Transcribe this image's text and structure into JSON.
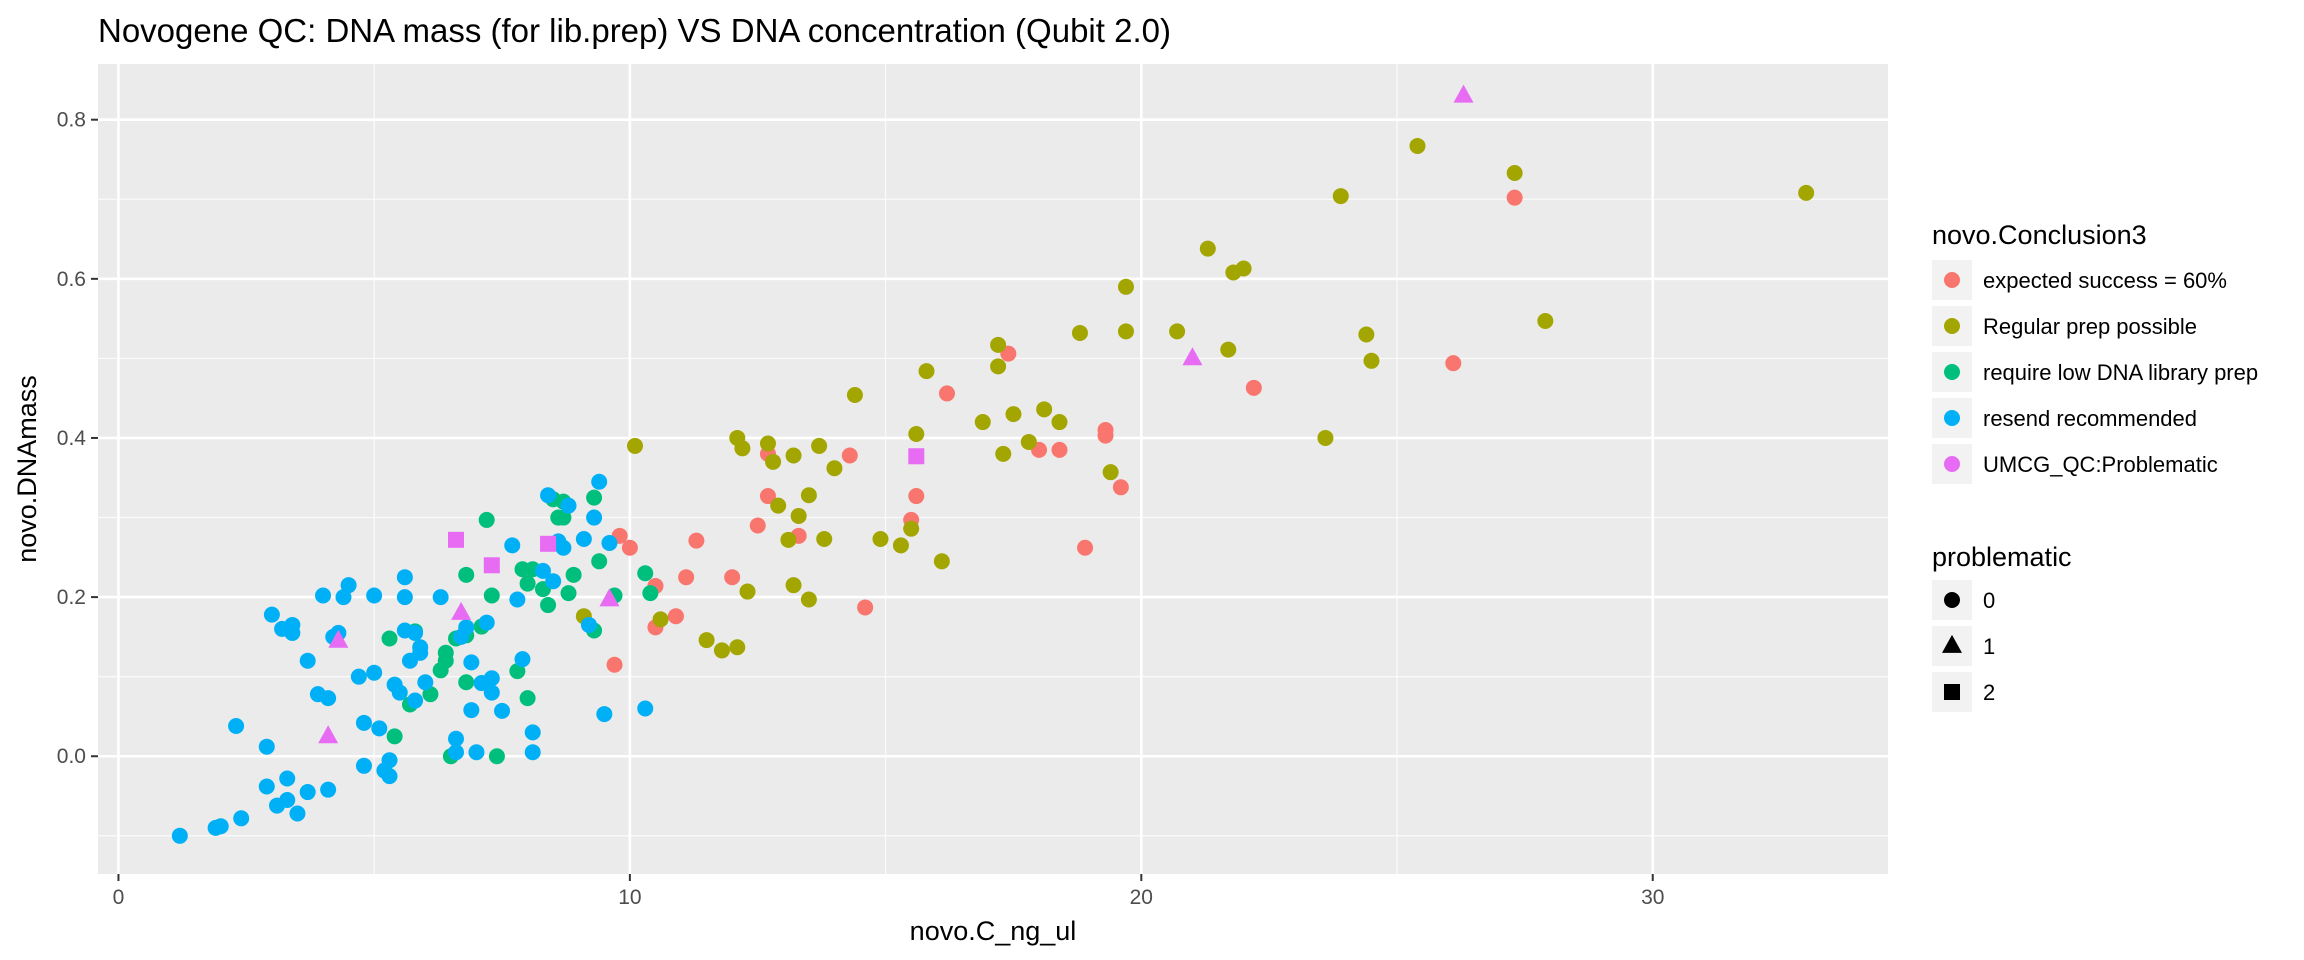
{
  "chart_data": {
    "type": "scatter",
    "title": "Novogene QC: DNA mass (for lib.prep) VS DNA concentration (Qubit 2.0)",
    "xlabel": "novo.C_ng_ul",
    "ylabel": "novo.DNAmass",
    "xlim": [
      -0.4,
      34.6
    ],
    "ylim": [
      -0.148,
      0.87
    ],
    "x_ticks": [
      0,
      10,
      20,
      30
    ],
    "y_ticks": [
      0.0,
      0.2,
      0.4,
      0.6,
      0.8
    ],
    "y_tick_labels": [
      "0.0",
      "0.2",
      "0.4",
      "0.6",
      "0.8"
    ],
    "grid": true,
    "legend_position": "right",
    "color_legend": {
      "title": "novo.Conclusion3",
      "entries": [
        {
          "label": "expected success = 60%",
          "color": "#F8766D"
        },
        {
          "label": "Regular prep possible",
          "color": "#A3A500"
        },
        {
          "label": "require low DNA library prep",
          "color": "#00BF7D"
        },
        {
          "label": "resend recommended",
          "color": "#00B0F6"
        },
        {
          "label": "UMCG_QC:Problematic",
          "color": "#E76BF3"
        }
      ]
    },
    "shape_legend": {
      "title": "problematic",
      "entries": [
        {
          "label": "0",
          "shape": "circle"
        },
        {
          "label": "1",
          "shape": "triangle"
        },
        {
          "label": "2",
          "shape": "square"
        }
      ]
    },
    "series": [
      {
        "name": "expected success = 60%",
        "color": "#F8766D",
        "shape": "circle",
        "points": [
          [
            9.8,
            0.277
          ],
          [
            10.0,
            0.262
          ],
          [
            10.5,
            0.214
          ],
          [
            10.5,
            0.162
          ],
          [
            10.9,
            0.176
          ],
          [
            11.1,
            0.225
          ],
          [
            11.3,
            0.271
          ],
          [
            12.0,
            0.225
          ],
          [
            12.5,
            0.29
          ],
          [
            12.7,
            0.327
          ],
          [
            12.7,
            0.38
          ],
          [
            13.3,
            0.277
          ],
          [
            14.3,
            0.378
          ],
          [
            14.6,
            0.187
          ],
          [
            15.5,
            0.297
          ],
          [
            15.6,
            0.327
          ],
          [
            16.2,
            0.456
          ],
          [
            17.4,
            0.506
          ],
          [
            18.0,
            0.385
          ],
          [
            18.4,
            0.385
          ],
          [
            18.9,
            0.262
          ],
          [
            19.3,
            0.41
          ],
          [
            19.3,
            0.403
          ],
          [
            19.6,
            0.338
          ],
          [
            22.2,
            0.463
          ],
          [
            26.1,
            0.494
          ],
          [
            27.3,
            0.702
          ],
          [
            9.7,
            0.115
          ]
        ]
      },
      {
        "name": "Regular prep possible",
        "color": "#A3A500",
        "shape": "circle",
        "points": [
          [
            9.1,
            0.176
          ],
          [
            10.1,
            0.39
          ],
          [
            10.6,
            0.172
          ],
          [
            11.5,
            0.146
          ],
          [
            11.8,
            0.133
          ],
          [
            12.1,
            0.137
          ],
          [
            12.1,
            0.4
          ],
          [
            12.2,
            0.387
          ],
          [
            12.3,
            0.207
          ],
          [
            12.7,
            0.393
          ],
          [
            12.8,
            0.37
          ],
          [
            12.9,
            0.315
          ],
          [
            13.1,
            0.272
          ],
          [
            13.2,
            0.378
          ],
          [
            13.2,
            0.215
          ],
          [
            13.3,
            0.302
          ],
          [
            13.5,
            0.328
          ],
          [
            13.5,
            0.197
          ],
          [
            13.7,
            0.39
          ],
          [
            13.8,
            0.273
          ],
          [
            14.0,
            0.362
          ],
          [
            14.4,
            0.454
          ],
          [
            14.9,
            0.273
          ],
          [
            15.3,
            0.265
          ],
          [
            15.5,
            0.286
          ],
          [
            15.6,
            0.405
          ],
          [
            15.8,
            0.484
          ],
          [
            16.1,
            0.245
          ],
          [
            16.9,
            0.42
          ],
          [
            17.2,
            0.49
          ],
          [
            17.2,
            0.517
          ],
          [
            17.3,
            0.38
          ],
          [
            17.5,
            0.43
          ],
          [
            17.8,
            0.395
          ],
          [
            18.1,
            0.436
          ],
          [
            18.4,
            0.42
          ],
          [
            18.8,
            0.532
          ],
          [
            19.4,
            0.357
          ],
          [
            19.7,
            0.534
          ],
          [
            19.7,
            0.59
          ],
          [
            20.7,
            0.534
          ],
          [
            21.3,
            0.638
          ],
          [
            21.7,
            0.511
          ],
          [
            21.8,
            0.608
          ],
          [
            22.0,
            0.613
          ],
          [
            23.6,
            0.4
          ],
          [
            23.9,
            0.704
          ],
          [
            24.4,
            0.53
          ],
          [
            24.5,
            0.497
          ],
          [
            25.4,
            0.767
          ],
          [
            27.3,
            0.733
          ],
          [
            27.9,
            0.547
          ],
          [
            33.0,
            0.708
          ]
        ]
      },
      {
        "name": "require low DNA library prep",
        "color": "#00BF7D",
        "shape": "circle",
        "points": [
          [
            5.3,
            0.148
          ],
          [
            5.4,
            0.025
          ],
          [
            5.7,
            0.065
          ],
          [
            5.8,
            0.157
          ],
          [
            6.3,
            0.108
          ],
          [
            6.4,
            0.13
          ],
          [
            6.4,
            0.12
          ],
          [
            6.6,
            0.148
          ],
          [
            6.8,
            0.152
          ],
          [
            6.8,
            0.093
          ],
          [
            6.8,
            0.228
          ],
          [
            7.1,
            0.163
          ],
          [
            7.2,
            0.297
          ],
          [
            7.3,
            0.202
          ],
          [
            7.4,
            0.0
          ],
          [
            7.8,
            0.107
          ],
          [
            7.9,
            0.235
          ],
          [
            8.0,
            0.217
          ],
          [
            8.0,
            0.073
          ],
          [
            8.1,
            0.235
          ],
          [
            8.3,
            0.21
          ],
          [
            8.4,
            0.19
          ],
          [
            8.5,
            0.323
          ],
          [
            8.6,
            0.3
          ],
          [
            8.7,
            0.32
          ],
          [
            8.7,
            0.3
          ],
          [
            8.8,
            0.205
          ],
          [
            8.9,
            0.228
          ],
          [
            9.3,
            0.158
          ],
          [
            9.3,
            0.325
          ],
          [
            9.4,
            0.245
          ],
          [
            9.7,
            0.202
          ],
          [
            10.3,
            0.23
          ],
          [
            10.4,
            0.205
          ],
          [
            6.1,
            0.078
          ],
          [
            6.5,
            0.0
          ]
        ]
      },
      {
        "name": "resend recommended",
        "color": "#00B0F6",
        "shape": "circle",
        "points": [
          [
            1.2,
            -0.1
          ],
          [
            1.9,
            -0.09
          ],
          [
            2.0,
            -0.088
          ],
          [
            2.3,
            0.038
          ],
          [
            2.4,
            -0.078
          ],
          [
            2.9,
            0.012
          ],
          [
            2.9,
            -0.038
          ],
          [
            3.0,
            0.178
          ],
          [
            3.1,
            -0.062
          ],
          [
            3.2,
            0.16
          ],
          [
            3.3,
            -0.028
          ],
          [
            3.3,
            -0.055
          ],
          [
            3.4,
            0.165
          ],
          [
            3.4,
            0.155
          ],
          [
            3.5,
            -0.072
          ],
          [
            3.7,
            0.12
          ],
          [
            3.7,
            -0.045
          ],
          [
            3.9,
            0.078
          ],
          [
            4.0,
            0.202
          ],
          [
            4.1,
            0.073
          ],
          [
            4.1,
            -0.042
          ],
          [
            4.2,
            0.15
          ],
          [
            4.3,
            0.155
          ],
          [
            4.4,
            0.2
          ],
          [
            4.5,
            0.215
          ],
          [
            4.7,
            0.1
          ],
          [
            4.8,
            -0.012
          ],
          [
            4.8,
            0.042
          ],
          [
            5.0,
            0.202
          ],
          [
            5.0,
            0.105
          ],
          [
            5.1,
            0.035
          ],
          [
            5.2,
            -0.018
          ],
          [
            5.3,
            -0.025
          ],
          [
            5.3,
            -0.005
          ],
          [
            5.4,
            0.09
          ],
          [
            5.5,
            0.08
          ],
          [
            5.6,
            0.158
          ],
          [
            5.6,
            0.225
          ],
          [
            5.6,
            0.2
          ],
          [
            5.7,
            0.12
          ],
          [
            5.8,
            0.155
          ],
          [
            5.8,
            0.07
          ],
          [
            5.9,
            0.137
          ],
          [
            5.9,
            0.13
          ],
          [
            6.0,
            0.093
          ],
          [
            6.3,
            0.2
          ],
          [
            6.6,
            0.022
          ],
          [
            6.6,
            0.005
          ],
          [
            6.7,
            0.15
          ],
          [
            6.8,
            0.162
          ],
          [
            6.9,
            0.118
          ],
          [
            6.9,
            0.058
          ],
          [
            7.0,
            0.005
          ],
          [
            7.1,
            0.092
          ],
          [
            7.2,
            0.168
          ],
          [
            7.3,
            0.098
          ],
          [
            7.3,
            0.08
          ],
          [
            7.5,
            0.057
          ],
          [
            7.7,
            0.265
          ],
          [
            7.8,
            0.197
          ],
          [
            7.9,
            0.122
          ],
          [
            8.1,
            0.005
          ],
          [
            8.1,
            0.03
          ],
          [
            8.3,
            0.233
          ],
          [
            8.4,
            0.328
          ],
          [
            8.5,
            0.22
          ],
          [
            8.6,
            0.27
          ],
          [
            8.7,
            0.262
          ],
          [
            8.8,
            0.315
          ],
          [
            9.1,
            0.273
          ],
          [
            9.2,
            0.165
          ],
          [
            9.3,
            0.3
          ],
          [
            9.4,
            0.345
          ],
          [
            9.5,
            0.053
          ],
          [
            9.6,
            0.268
          ],
          [
            10.3,
            0.06
          ]
        ]
      },
      {
        "name": "UMCG_QC:Problematic",
        "color": "#E76BF3",
        "shape": "triangle",
        "points": [
          [
            4.1,
            0.025
          ],
          [
            4.3,
            0.145
          ],
          [
            6.7,
            0.18
          ],
          [
            9.6,
            0.197
          ],
          [
            21.0,
            0.5
          ],
          [
            26.3,
            0.83
          ]
        ]
      },
      {
        "name": "UMCG_QC:Problematic",
        "color": "#E76BF3",
        "shape": "square",
        "points": [
          [
            6.6,
            0.272
          ],
          [
            7.3,
            0.24
          ],
          [
            8.4,
            0.267
          ],
          [
            15.6,
            0.377
          ]
        ]
      }
    ]
  }
}
